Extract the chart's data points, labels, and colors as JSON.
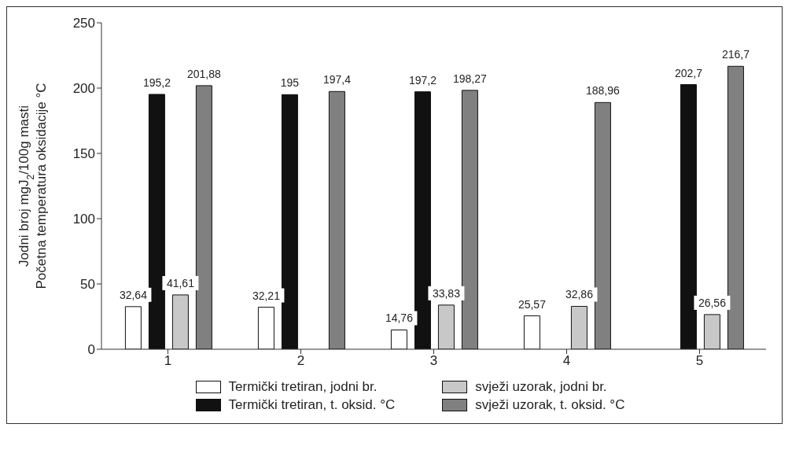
{
  "chart_data": {
    "type": "bar",
    "ylabel": "Jodni broj mgJ$_{2}$/100g masti\nPočetna temperatura oksidacije °C",
    "categories": [
      "1",
      "2",
      "3",
      "4",
      "5"
    ],
    "series": [
      {
        "name": "Termički tretiran, jodni br.",
        "color": "#ffffff",
        "values": [
          32.64,
          32.21,
          14.76,
          25.57,
          null
        ],
        "value_labels": [
          "32,64",
          "32,21",
          "14,76",
          "25,57",
          null
        ]
      },
      {
        "name": "Termički tretiran, t. oksid. °C",
        "color": "#111111",
        "values": [
          195.2,
          195,
          197.2,
          null,
          202.7
        ],
        "value_labels": [
          "195,2",
          "195",
          "197,2",
          null,
          "202,7"
        ]
      },
      {
        "name": "svježi uzorak, jodni br.",
        "color": "#c8c8c8",
        "values": [
          41.61,
          null,
          33.83,
          32.86,
          26.56
        ],
        "value_labels": [
          "41,61",
          null,
          "33,83",
          "32,86",
          "26,56"
        ]
      },
      {
        "name": "svježi uzorak, t. oksid. °C",
        "color": "#808080",
        "values": [
          201.88,
          197.4,
          198.27,
          188.96,
          216.7
        ],
        "value_labels": [
          "201,88",
          "197,4",
          "198,27",
          "188,96",
          "216,7"
        ]
      }
    ],
    "ylim": [
      0,
      250
    ],
    "yticks": [
      0,
      50,
      100,
      150,
      200,
      250
    ],
    "grid": false,
    "legend": "bottom"
  }
}
